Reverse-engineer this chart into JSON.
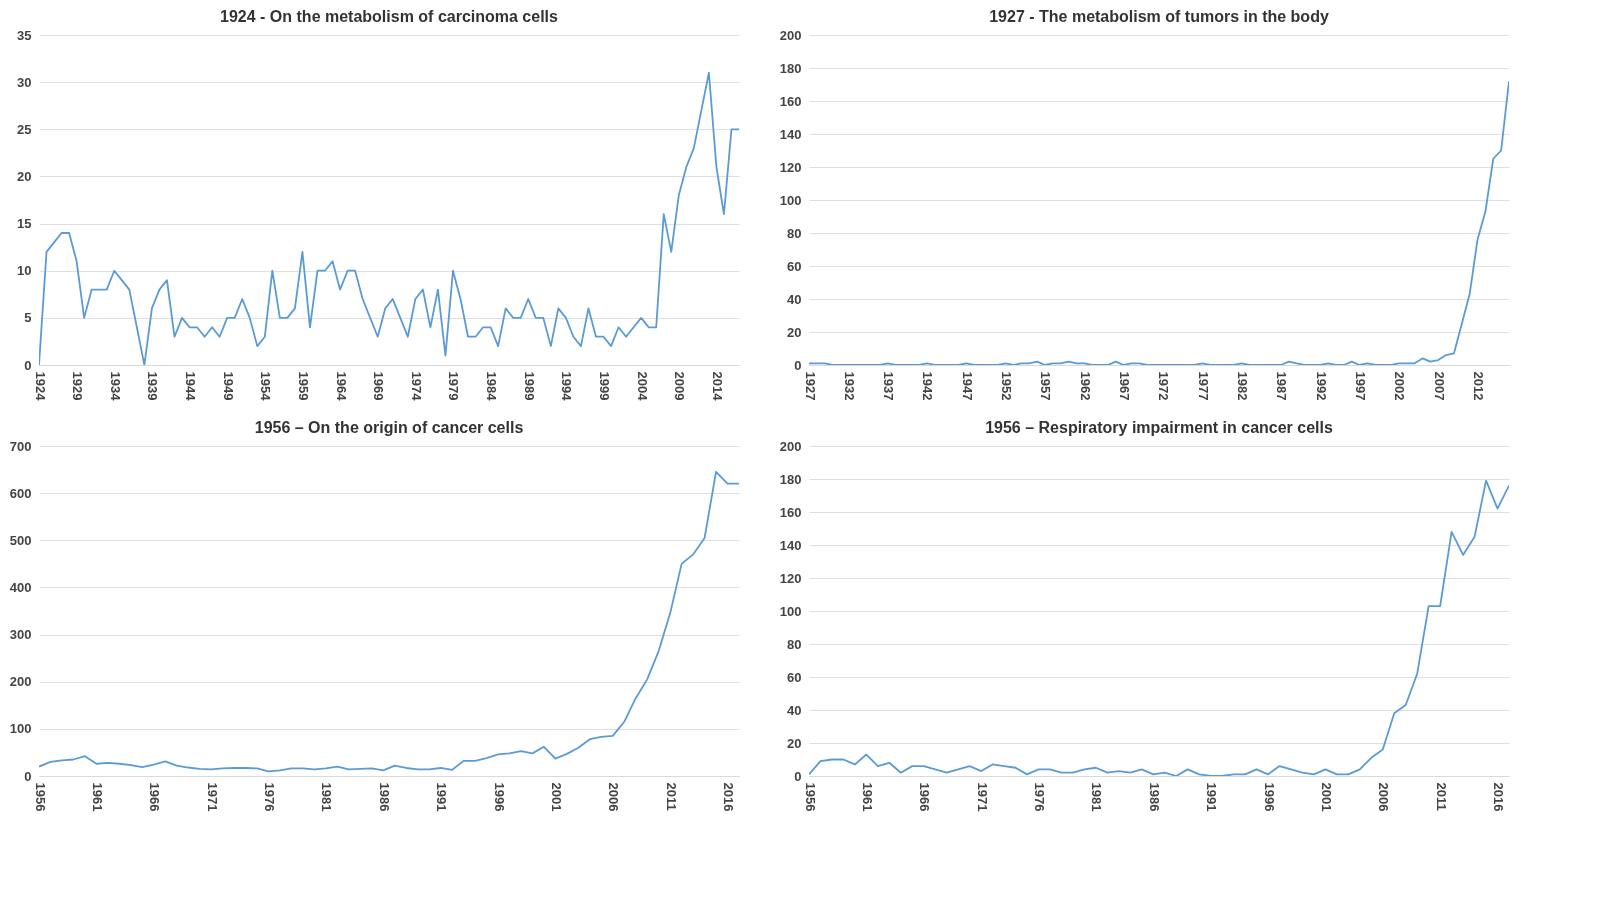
{
  "chart_data": [
    {
      "type": "line",
      "title": "1924 - On the metabolism of carcinoma cells",
      "color": "#5b9bd5",
      "grid": "y",
      "xlim": [
        1924,
        2017
      ],
      "xticks": [
        1924,
        1929,
        1934,
        1939,
        1944,
        1949,
        1954,
        1959,
        1964,
        1969,
        1974,
        1979,
        1984,
        1989,
        1994,
        1999,
        2004,
        2009,
        2014
      ],
      "ylim": [
        0,
        35
      ],
      "yticks": [
        0,
        5,
        10,
        15,
        20,
        25,
        30,
        35
      ],
      "x": [
        1924,
        1925,
        1926,
        1927,
        1928,
        1929,
        1930,
        1931,
        1932,
        1933,
        1934,
        1935,
        1936,
        1937,
        1938,
        1939,
        1940,
        1941,
        1942,
        1943,
        1944,
        1945,
        1946,
        1947,
        1948,
        1949,
        1950,
        1951,
        1952,
        1953,
        1954,
        1955,
        1956,
        1957,
        1958,
        1959,
        1960,
        1961,
        1962,
        1963,
        1964,
        1965,
        1966,
        1967,
        1968,
        1969,
        1970,
        1971,
        1972,
        1973,
        1974,
        1975,
        1976,
        1977,
        1978,
        1979,
        1980,
        1981,
        1982,
        1983,
        1984,
        1985,
        1986,
        1987,
        1988,
        1989,
        1990,
        1991,
        1992,
        1993,
        1994,
        1995,
        1996,
        1997,
        1998,
        1999,
        2000,
        2001,
        2002,
        2003,
        2004,
        2005,
        2006,
        2007,
        2008,
        2009,
        2010,
        2011,
        2012,
        2013,
        2014,
        2015,
        2016,
        2017
      ],
      "values": [
        0,
        12,
        13,
        14,
        14,
        11,
        5,
        8,
        8,
        8,
        10,
        9,
        8,
        4,
        0,
        6,
        8,
        9,
        3,
        5,
        4,
        4,
        3,
        4,
        3,
        5,
        5,
        7,
        5,
        2,
        3,
        10,
        5,
        5,
        6,
        12,
        4,
        10,
        10,
        11,
        8,
        10,
        10,
        7,
        5,
        3,
        6,
        7,
        5,
        3,
        7,
        8,
        4,
        8,
        1,
        10,
        7,
        3,
        3,
        4,
        4,
        2,
        6,
        5,
        5,
        7,
        5,
        5,
        2,
        6,
        5,
        3,
        2,
        6,
        3,
        3,
        2,
        4,
        3,
        4,
        5,
        4,
        4,
        16,
        12,
        18,
        21,
        23,
        27,
        31,
        21,
        16,
        25,
        25
      ]
    },
    {
      "type": "line",
      "title": "1927 - The metabolism of tumors in the body",
      "color": "#5b9bd5",
      "grid": "y",
      "xlim": [
        1927,
        2016
      ],
      "xticks": [
        1927,
        1932,
        1937,
        1942,
        1947,
        1952,
        1957,
        1962,
        1967,
        1972,
        1977,
        1982,
        1987,
        1992,
        1997,
        2002,
        2007,
        2012
      ],
      "ylim": [
        0,
        200
      ],
      "yticks": [
        0,
        20,
        40,
        60,
        80,
        100,
        120,
        140,
        160,
        180,
        200
      ],
      "x": [
        1927,
        1928,
        1929,
        1930,
        1931,
        1932,
        1933,
        1934,
        1935,
        1936,
        1937,
        1938,
        1939,
        1940,
        1941,
        1942,
        1943,
        1944,
        1945,
        1946,
        1947,
        1948,
        1949,
        1950,
        1951,
        1952,
        1953,
        1954,
        1955,
        1956,
        1957,
        1958,
        1959,
        1960,
        1961,
        1962,
        1963,
        1964,
        1965,
        1966,
        1967,
        1968,
        1969,
        1970,
        1971,
        1972,
        1973,
        1974,
        1975,
        1976,
        1977,
        1978,
        1979,
        1980,
        1981,
        1982,
        1983,
        1984,
        1985,
        1986,
        1987,
        1988,
        1989,
        1990,
        1991,
        1992,
        1993,
        1994,
        1995,
        1996,
        1997,
        1998,
        1999,
        2000,
        2001,
        2002,
        2003,
        2004,
        2005,
        2006,
        2007,
        2008,
        2009,
        2010,
        2011,
        2012,
        2013,
        2014,
        2015,
        2016
      ],
      "values": [
        1,
        1,
        1,
        0,
        0,
        0,
        0,
        0,
        0,
        0,
        1,
        0,
        0,
        0,
        0,
        1,
        0,
        0,
        0,
        0,
        1,
        0,
        0,
        0,
        0,
        1,
        0,
        1,
        1,
        2,
        0,
        1,
        1,
        2,
        1,
        1,
        0,
        0,
        0,
        2,
        0,
        1,
        1,
        0,
        0,
        0,
        0,
        0,
        0,
        0,
        1,
        0,
        0,
        0,
        0,
        1,
        0,
        0,
        0,
        0,
        0,
        2,
        1,
        0,
        0,
        0,
        1,
        0,
        0,
        2,
        0,
        1,
        0,
        0,
        0,
        1,
        1,
        1,
        4,
        2,
        3,
        6,
        7,
        25,
        43,
        76,
        93,
        125,
        130,
        172
      ]
    },
    {
      "type": "line",
      "title": "1956 – On the origin of cancer cells",
      "color": "#5b9bd5",
      "grid": "y",
      "xlim": [
        1956,
        2017
      ],
      "xticks": [
        1956,
        1961,
        1966,
        1971,
        1976,
        1981,
        1986,
        1991,
        1996,
        2001,
        2006,
        2011,
        2016
      ],
      "ylim": [
        0,
        700
      ],
      "yticks": [
        0,
        100,
        200,
        300,
        400,
        500,
        600,
        700
      ],
      "x": [
        1956,
        1957,
        1958,
        1959,
        1960,
        1961,
        1962,
        1963,
        1964,
        1965,
        1966,
        1967,
        1968,
        1969,
        1970,
        1971,
        1972,
        1973,
        1974,
        1975,
        1976,
        1977,
        1978,
        1979,
        1980,
        1981,
        1982,
        1983,
        1984,
        1985,
        1986,
        1987,
        1988,
        1989,
        1990,
        1991,
        1992,
        1993,
        1994,
        1995,
        1996,
        1997,
        1998,
        1999,
        2000,
        2001,
        2002,
        2003,
        2004,
        2005,
        2006,
        2007,
        2008,
        2009,
        2010,
        2011,
        2012,
        2013,
        2014,
        2015,
        2016,
        2017
      ],
      "values": [
        20,
        30,
        33,
        35,
        42,
        26,
        28,
        26,
        23,
        19,
        24,
        31,
        22,
        18,
        15,
        14,
        16,
        17,
        17,
        16,
        10,
        12,
        16,
        16,
        14,
        16,
        20,
        14,
        15,
        16,
        12,
        22,
        17,
        14,
        14,
        17,
        13,
        32,
        32,
        38,
        46,
        48,
        53,
        48,
        62,
        37,
        47,
        60,
        78,
        83,
        85,
        115,
        165,
        205,
        265,
        345,
        450,
        470,
        505,
        645,
        620,
        620
      ]
    },
    {
      "type": "line",
      "title": "1956 – Respiratory impairment in cancer cells",
      "color": "#5b9bd5",
      "grid": "y",
      "xlim": [
        1956,
        2017
      ],
      "xticks": [
        1956,
        1961,
        1966,
        1971,
        1976,
        1981,
        1986,
        1991,
        1996,
        2001,
        2006,
        2011,
        2016
      ],
      "ylim": [
        0,
        200
      ],
      "yticks": [
        0,
        20,
        40,
        60,
        80,
        100,
        120,
        140,
        160,
        180,
        200
      ],
      "x": [
        1956,
        1957,
        1958,
        1959,
        1960,
        1961,
        1962,
        1963,
        1964,
        1965,
        1966,
        1967,
        1968,
        1969,
        1970,
        1971,
        1972,
        1973,
        1974,
        1975,
        1976,
        1977,
        1978,
        1979,
        1980,
        1981,
        1982,
        1983,
        1984,
        1985,
        1986,
        1987,
        1988,
        1989,
        1990,
        1991,
        1992,
        1993,
        1994,
        1995,
        1996,
        1997,
        1998,
        1999,
        2000,
        2001,
        2002,
        2003,
        2004,
        2005,
        2006,
        2007,
        2008,
        2009,
        2010,
        2011,
        2012,
        2013,
        2014,
        2015,
        2016,
        2017
      ],
      "values": [
        1,
        9,
        10,
        10,
        7,
        13,
        6,
        8,
        2,
        6,
        6,
        4,
        2,
        4,
        6,
        3,
        7,
        6,
        5,
        1,
        4,
        4,
        2,
        2,
        4,
        5,
        2,
        3,
        2,
        4,
        1,
        2,
        0,
        4,
        1,
        0,
        0,
        1,
        1,
        4,
        1,
        6,
        4,
        2,
        1,
        4,
        1,
        1,
        4,
        11,
        16,
        38,
        43,
        62,
        103,
        103,
        148,
        134,
        145,
        179,
        162,
        176
      ]
    }
  ]
}
